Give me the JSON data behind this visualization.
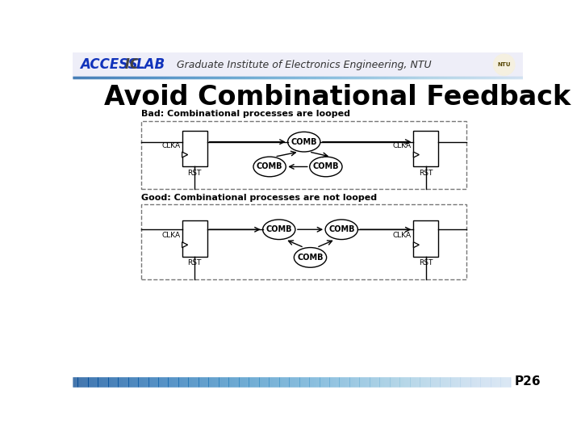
{
  "title": "Avoid Combinational Feedback",
  "header_text": "Graduate Institute of Electronics Engineering, NTU",
  "page_num": "P26",
  "bad_label": "Bad: Combinational processes are looped",
  "good_label": "Good: Combinational processes are not looped",
  "bg_color": "#ffffff",
  "title_color": "#000000"
}
